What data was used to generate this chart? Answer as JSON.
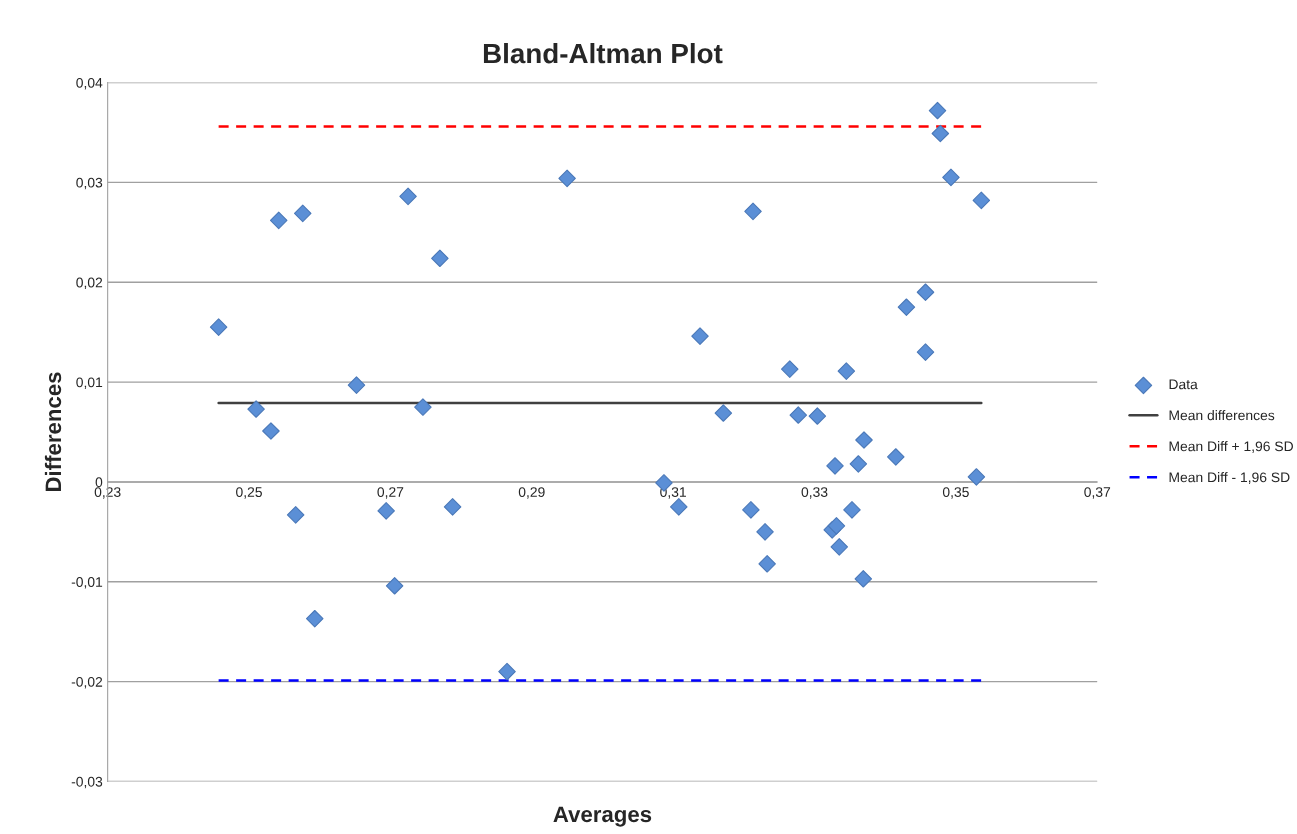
{
  "chart_data": {
    "type": "scatter",
    "title": "Bland-Altman Plot",
    "xlabel": "Averages",
    "ylabel": "Differences",
    "xlim": [
      0.23,
      0.37
    ],
    "xticks": [
      {
        "value": 0.23,
        "label": "0,23"
      },
      {
        "value": 0.25,
        "label": "0,25"
      },
      {
        "value": 0.27,
        "label": "0,27"
      },
      {
        "value": 0.29,
        "label": "0,29"
      },
      {
        "value": 0.31,
        "label": "0,31"
      },
      {
        "value": 0.33,
        "label": "0,33"
      },
      {
        "value": 0.35,
        "label": "0,35"
      },
      {
        "value": 0.37,
        "label": "0,37"
      }
    ],
    "ylim": [
      -0.03,
      0.04
    ],
    "yticks": [
      {
        "value": -0.03,
        "label": "-0,03"
      },
      {
        "value": -0.02,
        "label": "-0,02"
      },
      {
        "value": -0.01,
        "label": "-0,01"
      },
      {
        "value": 0,
        "label": "0"
      },
      {
        "value": 0.01,
        "label": "0,01"
      },
      {
        "value": 0.02,
        "label": "0,02"
      },
      {
        "value": 0.03,
        "label": "0,03"
      },
      {
        "value": 0.04,
        "label": "0,04"
      }
    ],
    "grid": "y",
    "legend": "right",
    "series": [
      {
        "name": "Data",
        "marker": "diamond",
        "color": "#5b8fd6",
        "x": [
          0.2457,
          0.251,
          0.2531,
          0.2542,
          0.2566,
          0.2576,
          0.2593,
          0.2652,
          0.2694,
          0.2706,
          0.2725,
          0.2746,
          0.277,
          0.2788,
          0.2865,
          0.295,
          0.3087,
          0.3108,
          0.3138,
          0.3171,
          0.321,
          0.3213,
          0.323,
          0.3233,
          0.3265,
          0.3277,
          0.3304,
          0.3325,
          0.3329,
          0.3331,
          0.3335,
          0.3345,
          0.3353,
          0.3362,
          0.3369,
          0.337,
          0.3415,
          0.343,
          0.3457,
          0.3457,
          0.3474,
          0.3478,
          0.3493,
          0.3529,
          0.3536
        ],
        "values": [
          0.0155,
          0.0073,
          0.0051,
          0.0262,
          -0.0033,
          0.0269,
          -0.0137,
          0.0097,
          -0.0029,
          -0.0104,
          0.0286,
          0.0075,
          0.0224,
          -0.0025,
          -0.019,
          0.0304,
          -0.0001,
          -0.0025,
          0.0146,
          0.0069,
          -0.0028,
          0.0271,
          -0.005,
          -0.0082,
          0.0113,
          0.0067,
          0.0066,
          -0.0048,
          0.0016,
          -0.0044,
          -0.0065,
          0.0111,
          -0.0028,
          0.0018,
          -0.0097,
          0.0042,
          0.0025,
          0.0175,
          0.013,
          0.019,
          0.0372,
          0.0349,
          0.0305,
          0.0005,
          0.0282
        ]
      },
      {
        "name": "Mean differences",
        "type": "line",
        "marker": "none",
        "color": "#404040",
        "line_style": "solid",
        "x": [
          0.2457,
          0.3536
        ],
        "values": [
          0.0079,
          0.0079
        ]
      },
      {
        "name": "Mean Diff + 1,96 SD",
        "type": "line",
        "marker": "none",
        "color": "#ff0000",
        "line_style": "dashed",
        "x": [
          0.2457,
          0.3536
        ],
        "values": [
          0.0356,
          0.0356
        ]
      },
      {
        "name": "Mean Diff - 1,96 SD",
        "type": "line",
        "marker": "none",
        "color": "#0000ff",
        "line_style": "dashed",
        "x": [
          0.2457,
          0.3536
        ],
        "values": [
          -0.0199,
          -0.0199
        ]
      }
    ]
  }
}
